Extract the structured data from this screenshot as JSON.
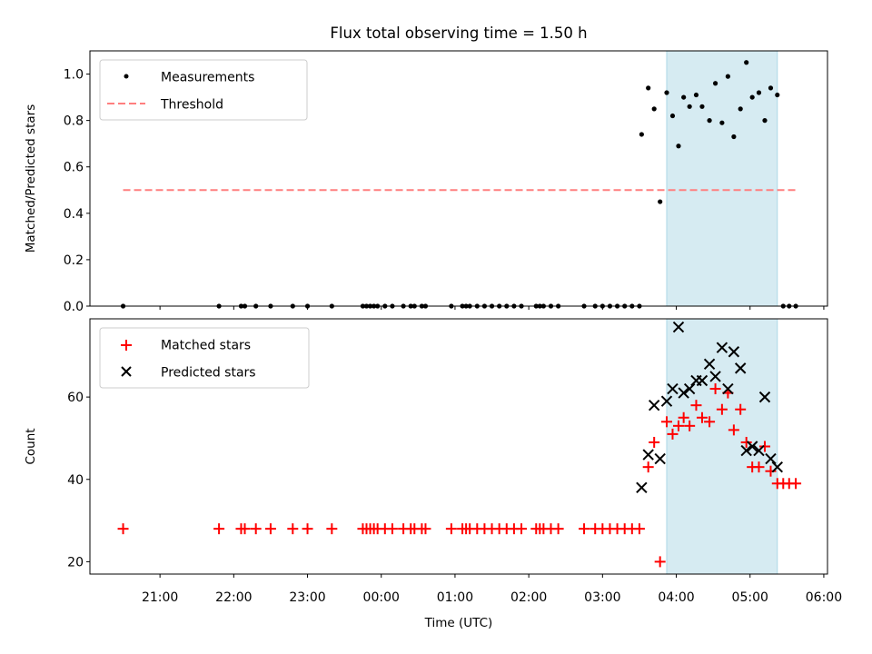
{
  "colors": {
    "shade": "#add8e6",
    "threshold": "#ff7f7f",
    "matched": "#ff0000",
    "predicted": "#000000",
    "measure": "#000000"
  },
  "chart_data": {
    "type": "scatter",
    "title": "Flux total observing time = 1.50 h",
    "xlabel": "Time (UTC)",
    "x_unit": "hours since 00:00 UTC",
    "xlim": [
      -3.95,
      6.05
    ],
    "xticks": [
      {
        "v": -3,
        "label": "21:00"
      },
      {
        "v": -2,
        "label": "22:00"
      },
      {
        "v": -1,
        "label": "23:00"
      },
      {
        "v": 0,
        "label": "00:00"
      },
      {
        "v": 1,
        "label": "01:00"
      },
      {
        "v": 2,
        "label": "02:00"
      },
      {
        "v": 3,
        "label": "03:00"
      },
      {
        "v": 4,
        "label": "04:00"
      },
      {
        "v": 5,
        "label": "05:00"
      },
      {
        "v": 6,
        "label": "06:00"
      }
    ],
    "shaded_interval": [
      3.87,
      5.37
    ],
    "panels": [
      {
        "name": "ratio",
        "ylabel": "Matched/Predicted stars",
        "ylim": [
          0,
          1.1
        ],
        "yticks": [
          {
            "v": 0,
            "label": "0.0"
          },
          {
            "v": 0.2,
            "label": "0.2"
          },
          {
            "v": 0.4,
            "label": "0.4"
          },
          {
            "v": 0.6,
            "label": "0.6"
          },
          {
            "v": 0.8,
            "label": "0.8"
          },
          {
            "v": 1.0,
            "label": "1.0"
          }
        ],
        "threshold": {
          "y": 0.5,
          "x_range": [
            -3.5,
            5.62
          ]
        },
        "legend": {
          "placement": "top-left",
          "entries": [
            "Measurements",
            "Threshold"
          ]
        },
        "series": [
          {
            "name": "Measurements",
            "marker": "dot",
            "points": [
              [
                -3.5,
                0
              ],
              [
                -2.2,
                0
              ],
              [
                -1.9,
                0
              ],
              [
                -1.85,
                0
              ],
              [
                -1.7,
                0
              ],
              [
                -1.5,
                0
              ],
              [
                -1.2,
                0
              ],
              [
                -1.0,
                0
              ],
              [
                -0.67,
                0
              ],
              [
                -0.25,
                0
              ],
              [
                -0.2,
                0
              ],
              [
                -0.15,
                0
              ],
              [
                -0.1,
                0
              ],
              [
                -0.05,
                0
              ],
              [
                0.05,
                0
              ],
              [
                0.15,
                0
              ],
              [
                0.3,
                0
              ],
              [
                0.4,
                0
              ],
              [
                0.45,
                0
              ],
              [
                0.55,
                0
              ],
              [
                0.6,
                0
              ],
              [
                0.95,
                0
              ],
              [
                1.1,
                0
              ],
              [
                1.15,
                0
              ],
              [
                1.2,
                0
              ],
              [
                1.3,
                0
              ],
              [
                1.4,
                0
              ],
              [
                1.5,
                0
              ],
              [
                1.6,
                0
              ],
              [
                1.7,
                0
              ],
              [
                1.8,
                0
              ],
              [
                1.9,
                0
              ],
              [
                2.1,
                0
              ],
              [
                2.15,
                0
              ],
              [
                2.2,
                0
              ],
              [
                2.3,
                0
              ],
              [
                2.4,
                0
              ],
              [
                2.75,
                0
              ],
              [
                2.9,
                0
              ],
              [
                3.0,
                0
              ],
              [
                3.1,
                0
              ],
              [
                3.2,
                0
              ],
              [
                3.3,
                0
              ],
              [
                3.4,
                0
              ],
              [
                3.5,
                0
              ],
              [
                3.53,
                0.74
              ],
              [
                3.62,
                0.94
              ],
              [
                3.7,
                0.85
              ],
              [
                3.78,
                0.45
              ],
              [
                3.87,
                0.92
              ],
              [
                3.95,
                0.82
              ],
              [
                4.03,
                0.69
              ],
              [
                4.1,
                0.9
              ],
              [
                4.18,
                0.86
              ],
              [
                4.27,
                0.91
              ],
              [
                4.35,
                0.86
              ],
              [
                4.45,
                0.8
              ],
              [
                4.53,
                0.96
              ],
              [
                4.62,
                0.79
              ],
              [
                4.7,
                0.99
              ],
              [
                4.78,
                0.73
              ],
              [
                4.87,
                0.85
              ],
              [
                4.95,
                1.05
              ],
              [
                5.03,
                0.9
              ],
              [
                5.12,
                0.92
              ],
              [
                5.2,
                0.8
              ],
              [
                5.28,
                0.94
              ],
              [
                5.37,
                0.91
              ],
              [
                5.45,
                0
              ],
              [
                5.53,
                0
              ],
              [
                5.62,
                0
              ]
            ]
          }
        ]
      },
      {
        "name": "counts",
        "ylabel": "Count",
        "ylim": [
          17,
          79
        ],
        "yticks": [
          {
            "v": 20,
            "label": "20"
          },
          {
            "v": 40,
            "label": "40"
          },
          {
            "v": 60,
            "label": "60"
          }
        ],
        "legend": {
          "placement": "top-left",
          "entries": [
            "Matched stars",
            "Predicted stars"
          ]
        },
        "series": [
          {
            "name": "Matched stars",
            "marker": "plus",
            "points": [
              [
                -3.5,
                28
              ],
              [
                -2.2,
                28
              ],
              [
                -1.9,
                28
              ],
              [
                -1.85,
                28
              ],
              [
                -1.7,
                28
              ],
              [
                -1.5,
                28
              ],
              [
                -1.2,
                28
              ],
              [
                -1.0,
                28
              ],
              [
                -0.67,
                28
              ],
              [
                -0.25,
                28
              ],
              [
                -0.2,
                28
              ],
              [
                -0.15,
                28
              ],
              [
                -0.1,
                28
              ],
              [
                -0.05,
                28
              ],
              [
                0.05,
                28
              ],
              [
                0.15,
                28
              ],
              [
                0.3,
                28
              ],
              [
                0.4,
                28
              ],
              [
                0.45,
                28
              ],
              [
                0.55,
                28
              ],
              [
                0.6,
                28
              ],
              [
                0.95,
                28
              ],
              [
                1.1,
                28
              ],
              [
                1.15,
                28
              ],
              [
                1.2,
                28
              ],
              [
                1.3,
                28
              ],
              [
                1.4,
                28
              ],
              [
                1.5,
                28
              ],
              [
                1.6,
                28
              ],
              [
                1.7,
                28
              ],
              [
                1.8,
                28
              ],
              [
                1.9,
                28
              ],
              [
                2.1,
                28
              ],
              [
                2.15,
                28
              ],
              [
                2.2,
                28
              ],
              [
                2.3,
                28
              ],
              [
                2.4,
                28
              ],
              [
                2.75,
                28
              ],
              [
                2.9,
                28
              ],
              [
                3.0,
                28
              ],
              [
                3.1,
                28
              ],
              [
                3.2,
                28
              ],
              [
                3.3,
                28
              ],
              [
                3.4,
                28
              ],
              [
                3.5,
                28
              ],
              [
                3.62,
                43
              ],
              [
                3.7,
                49
              ],
              [
                3.78,
                20
              ],
              [
                3.87,
                54
              ],
              [
                3.95,
                51
              ],
              [
                4.03,
                53
              ],
              [
                4.1,
                55
              ],
              [
                4.18,
                53
              ],
              [
                4.27,
                58
              ],
              [
                4.35,
                55
              ],
              [
                4.45,
                54
              ],
              [
                4.53,
                62
              ],
              [
                4.62,
                57
              ],
              [
                4.7,
                61
              ],
              [
                4.78,
                52
              ],
              [
                4.87,
                57
              ],
              [
                4.95,
                49
              ],
              [
                5.03,
                43
              ],
              [
                5.12,
                43
              ],
              [
                5.2,
                48
              ],
              [
                5.28,
                42
              ],
              [
                5.37,
                39
              ],
              [
                5.45,
                39
              ],
              [
                5.53,
                39
              ],
              [
                5.62,
                39
              ]
            ]
          },
          {
            "name": "Predicted stars",
            "marker": "x",
            "points": [
              [
                3.53,
                38
              ],
              [
                3.62,
                46
              ],
              [
                3.7,
                58
              ],
              [
                3.78,
                45
              ],
              [
                3.87,
                59
              ],
              [
                3.95,
                62
              ],
              [
                4.03,
                77
              ],
              [
                4.1,
                61
              ],
              [
                4.18,
                62
              ],
              [
                4.27,
                64
              ],
              [
                4.35,
                64
              ],
              [
                4.45,
                68
              ],
              [
                4.53,
                65
              ],
              [
                4.62,
                72
              ],
              [
                4.7,
                62
              ],
              [
                4.78,
                71
              ],
              [
                4.87,
                67
              ],
              [
                4.95,
                47
              ],
              [
                5.03,
                48
              ],
              [
                5.12,
                47
              ],
              [
                5.2,
                60
              ],
              [
                5.28,
                45
              ],
              [
                5.37,
                43
              ]
            ]
          }
        ]
      }
    ]
  }
}
